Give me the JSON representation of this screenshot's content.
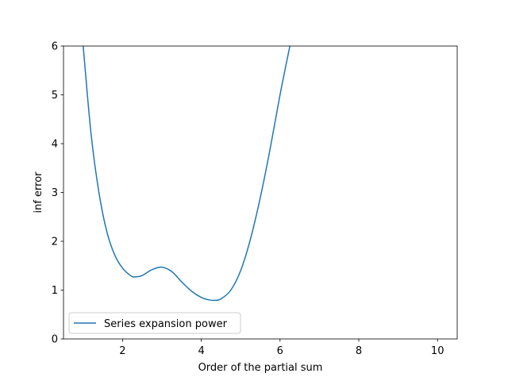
{
  "chart_data": {
    "type": "line",
    "title": "",
    "xlabel": "Order of the partial sum",
    "ylabel": "inf error",
    "xlim": [
      0.5,
      10.5
    ],
    "ylim": [
      0,
      6
    ],
    "xticks": [
      2,
      4,
      6,
      8,
      10
    ],
    "xtick_labels": [
      "2",
      "4",
      "6",
      "8",
      "10"
    ],
    "yticks": [
      0,
      1,
      2,
      3,
      4,
      5,
      6
    ],
    "ytick_labels": [
      "0",
      "1",
      "2",
      "3",
      "4",
      "5",
      "6"
    ],
    "grid": false,
    "legend_position": "lower-left",
    "series": [
      {
        "name": "Series expansion power",
        "color": "#1f77b4",
        "x": [
          1.0,
          1.2,
          1.4,
          1.6,
          1.8,
          2.0,
          2.2,
          2.3,
          2.5,
          2.75,
          3.0,
          3.25,
          3.5,
          3.75,
          4.0,
          4.2,
          4.35,
          4.5,
          4.75,
          5.0,
          5.25,
          5.5,
          5.75,
          6.0,
          6.25
        ],
        "y": [
          6.0,
          4.2,
          3.0,
          2.2,
          1.72,
          1.45,
          1.3,
          1.27,
          1.3,
          1.42,
          1.47,
          1.38,
          1.17,
          0.98,
          0.85,
          0.8,
          0.79,
          0.82,
          1.0,
          1.4,
          2.05,
          2.9,
          3.9,
          5.0,
          6.0
        ]
      }
    ]
  }
}
